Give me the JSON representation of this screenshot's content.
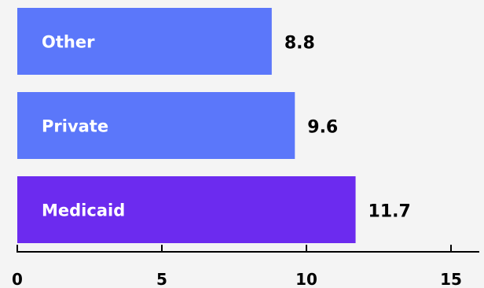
{
  "chart_data": {
    "type": "bar",
    "orientation": "horizontal",
    "title": "",
    "xlabel": "",
    "ylabel": "",
    "categories": [
      "Other",
      "Private",
      "Medicaid"
    ],
    "values": [
      8.8,
      9.6,
      11.7
    ],
    "value_labels": [
      "8.8",
      "9.6",
      "11.7"
    ],
    "xlim": [
      0,
      15
    ],
    "xticks": [
      0,
      5,
      10,
      15
    ],
    "xtick_labels": [
      "0",
      "5",
      "10",
      "15"
    ],
    "grid": false,
    "bar_colors": [
      "#5b77fa",
      "#5b77fa",
      "#6c2bef"
    ],
    "axis_color": "#000000"
  }
}
